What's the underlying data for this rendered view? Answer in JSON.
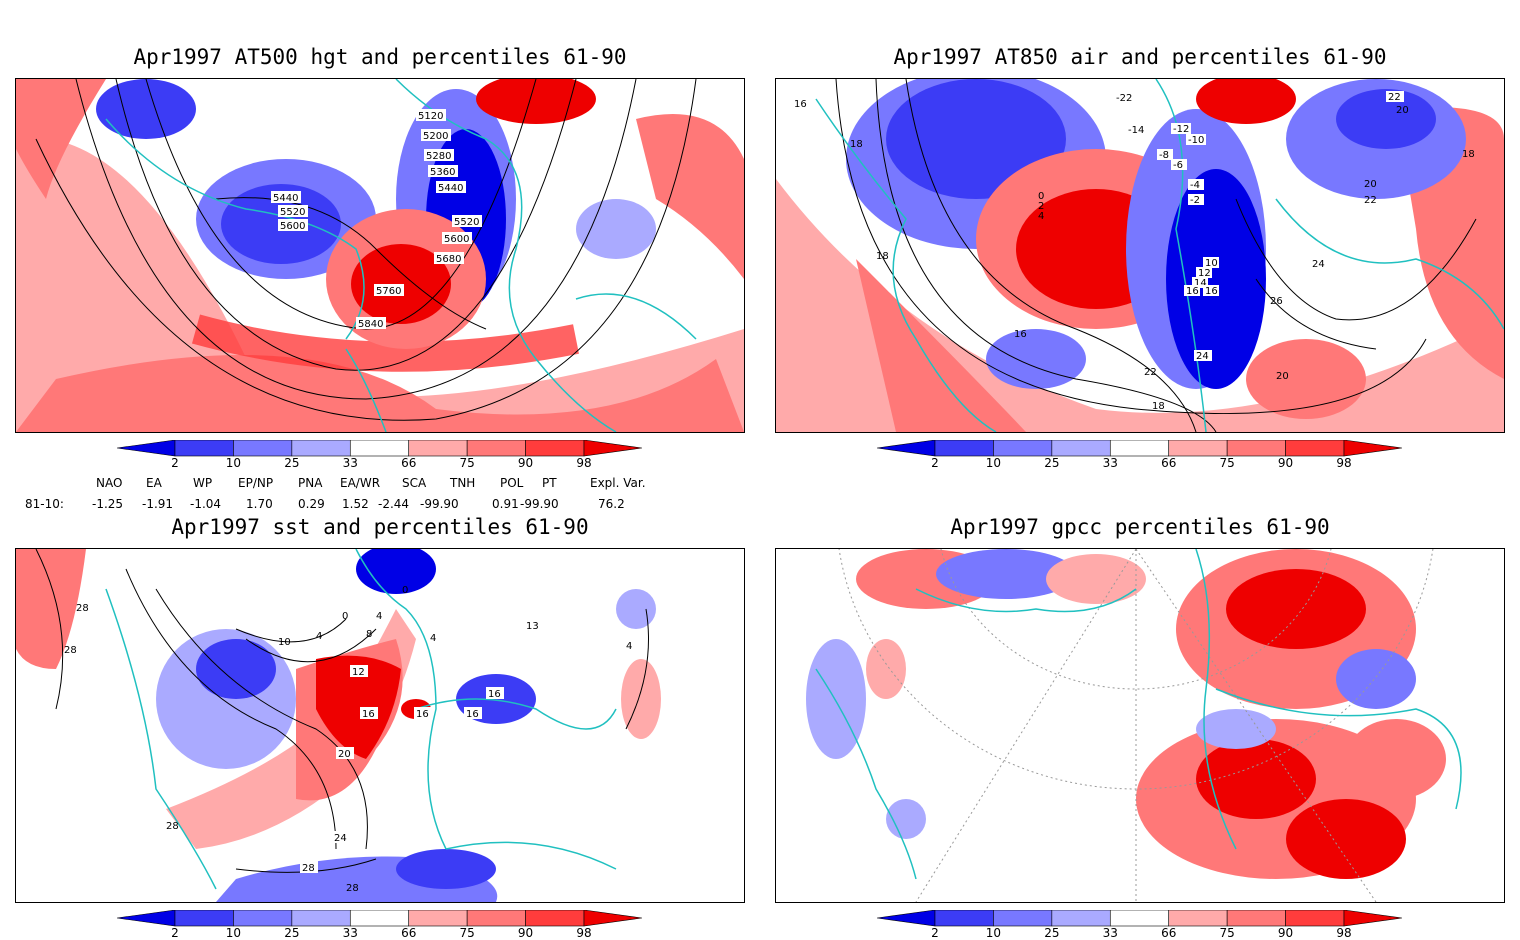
{
  "panels": {
    "hgt500": {
      "title": "Apr1997 AT500 hgt and percentiles 61-90",
      "contour_labels": [
        "5120",
        "5200",
        "5280",
        "5360",
        "5440",
        "5520",
        "5440",
        "5520",
        "5600",
        "5600",
        "5680",
        "5760",
        "5840"
      ]
    },
    "air850": {
      "title": "Apr1997 AT850 air and percentiles 61-90",
      "contour_labels": [
        "-22",
        "-14",
        "-12",
        "-10",
        "-8",
        "-6",
        "-4",
        "-2",
        "0",
        "2",
        "4",
        "10",
        "12",
        "14",
        "16",
        "16",
        "18",
        "18",
        "18",
        "20",
        "20",
        "22",
        "22",
        "22",
        "24",
        "24",
        "26",
        "16",
        "16",
        "18",
        "20"
      ]
    },
    "sst": {
      "title": "Apr1997 sst and percentiles 61-90",
      "contour_labels": [
        "28",
        "28",
        "0",
        "4",
        "8",
        "4",
        "12",
        "16",
        "16",
        "16",
        "16",
        "20",
        "24",
        "28",
        "28",
        "28",
        "10",
        "4",
        "0",
        "13",
        "4"
      ]
    },
    "gpcc": {
      "title": "Apr1997 gpcc percentiles 61-90",
      "contour_labels": []
    }
  },
  "colorbar": {
    "labels": [
      "2",
      "10",
      "25",
      "33",
      "66",
      "75",
      "90",
      "98"
    ],
    "colors": [
      "#0000e6",
      "#3c3cf5",
      "#7878ff",
      "#aaaaff",
      "#ffffff",
      "#ffaaaa",
      "#ff7878",
      "#ff3c3c",
      "#ee0000"
    ]
  },
  "indices": {
    "headers": [
      "NAO",
      "EA",
      "WP",
      "EP/NP",
      "PNA",
      "EA/WR",
      "SCA",
      "TNH",
      "POL",
      "PT",
      "Expl. Var."
    ],
    "row_label": "81-10:",
    "values": [
      "-1.25",
      "-1.91",
      "-1.04",
      "1.70",
      "0.29",
      "1.52",
      "-2.44",
      "-99.90",
      "0.91",
      "-99.90",
      "76.2"
    ]
  }
}
